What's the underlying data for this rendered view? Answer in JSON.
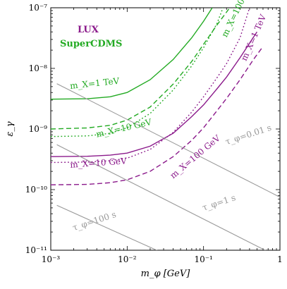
{
  "chart_data": {
    "type": "line",
    "xlabel": "m_φ [GeV]",
    "ylabel": "ε_γ",
    "xscale": "log",
    "yscale": "log",
    "xlim": [
      0.001,
      1
    ],
    "ylim": [
      1e-11,
      1e-07
    ],
    "x_tick_labels": [
      "10⁻³",
      "10⁻²",
      "10⁻¹",
      "1"
    ],
    "y_tick_labels": [
      "10⁻¹¹",
      "10⁻¹⁰",
      "10⁻⁹",
      "10⁻⁸",
      "10⁻⁷"
    ],
    "legend": [
      {
        "name": "LUX",
        "color": "#8b1a8b"
      },
      {
        "name": "SuperCDMS",
        "color": "#22aa22"
      }
    ],
    "series": [
      {
        "name": "SuperCDMS m_X=1 TeV",
        "experiment": "SuperCDMS",
        "color": "#22aa22",
        "dash": "solid",
        "x": [
          0.001,
          0.003,
          0.006,
          0.01,
          0.02,
          0.04,
          0.07,
          0.1,
          0.13
        ],
        "y": [
          3.1e-09,
          3.15e-09,
          3.4e-09,
          4e-09,
          6.5e-09,
          1.4e-08,
          3.2e-08,
          6e-08,
          1e-07
        ]
      },
      {
        "name": "SuperCDMS m_X=100 GeV",
        "experiment": "SuperCDMS",
        "color": "#22aa22",
        "dash": "dotted",
        "x": [
          0.001,
          0.003,
          0.006,
          0.01,
          0.02,
          0.04,
          0.07,
          0.1,
          0.15,
          0.18
        ],
        "y": [
          7.5e-10,
          7.7e-10,
          8.5e-10,
          1.05e-09,
          1.8e-09,
          4.4e-09,
          1.1e-08,
          2.2e-08,
          5.5e-08,
          1e-07
        ]
      },
      {
        "name": "SuperCDMS m_X=10 GeV",
        "experiment": "SuperCDMS",
        "color": "#22aa22",
        "dash": "dashed",
        "x": [
          0.001,
          0.003,
          0.006,
          0.01,
          0.02,
          0.04,
          0.07,
          0.1,
          0.15,
          0.2,
          0.22
        ],
        "y": [
          1e-09,
          1.04e-09,
          1.15e-09,
          1.4e-09,
          2.3e-09,
          5.5e-09,
          1.3e-08,
          2.5e-08,
          5.2e-08,
          8.5e-08,
          1e-07
        ]
      },
      {
        "name": "LUX m_X=1 TeV",
        "experiment": "LUX",
        "color": "#8b1a8b",
        "dash": "dotted",
        "x": [
          0.001,
          0.003,
          0.006,
          0.01,
          0.02,
          0.04,
          0.07,
          0.1,
          0.15,
          0.2,
          0.3,
          0.4
        ],
        "y": [
          2.8e-10,
          2.85e-10,
          3e-10,
          3.3e-10,
          4.6e-10,
          8.8e-10,
          1.9e-09,
          3.4e-09,
          7e-09,
          1.2e-08,
          3.2e-08,
          1e-07
        ]
      },
      {
        "name": "LUX m_X=10 GeV",
        "experiment": "LUX",
        "color": "#8b1a8b",
        "dash": "solid",
        "x": [
          0.001,
          0.003,
          0.006,
          0.01,
          0.02,
          0.04,
          0.07,
          0.1,
          0.15,
          0.2,
          0.3,
          0.4,
          0.5
        ],
        "y": [
          3.5e-10,
          3.55e-10,
          3.7e-10,
          4e-10,
          5.2e-10,
          8.5e-10,
          1.6e-09,
          2.5e-09,
          4.6e-09,
          7.2e-09,
          1.5e-08,
          2.6e-08,
          4e-08
        ]
      },
      {
        "name": "LUX m_X=100 GeV",
        "experiment": "LUX",
        "color": "#8b1a8b",
        "dash": "dashed",
        "x": [
          0.001,
          0.003,
          0.006,
          0.01,
          0.02,
          0.04,
          0.07,
          0.1,
          0.15,
          0.2,
          0.3,
          0.45,
          0.6
        ],
        "y": [
          1.2e-10,
          1.22e-10,
          1.3e-10,
          1.45e-10,
          2e-10,
          3.5e-10,
          6.5e-10,
          1.05e-09,
          2e-09,
          3.2e-09,
          6.5e-09,
          1.4e-08,
          2.3e-08
        ]
      },
      {
        "name": "τ_φ=0.01 s",
        "color": "#999999",
        "dash": "solid",
        "x": [
          0.0012,
          1
        ],
        "y": [
          5.6e-09,
          7.5e-11
        ]
      },
      {
        "name": "τ_φ=1 s",
        "color": "#999999",
        "dash": "solid",
        "x": [
          0.0012,
          1
        ],
        "y": [
          5.5e-10,
          7.5e-12
        ]
      },
      {
        "name": "τ_φ=100 s",
        "color": "#999999",
        "dash": "solid",
        "x": [
          0.0012,
          0.03
        ],
        "y": [
          5.5e-11,
          8.9e-12
        ]
      }
    ],
    "annotations": [
      {
        "text": "m_X=1 TeV",
        "color": "#22aa22",
        "x": 0.0018,
        "y": 4.6e-09,
        "rotate": -6
      },
      {
        "text": "m_X=100 GeV",
        "color": "#22aa22",
        "x": 0.2,
        "y": 3.2e-08,
        "rotate": -64
      },
      {
        "text": "m_X=10 GeV",
        "color": "#22aa22",
        "x": 0.004,
        "y": 7.3e-10,
        "rotate": -13
      },
      {
        "text": "m_X=1 TeV",
        "color": "#8b1a8b",
        "x": 0.36,
        "y": 1.3e-08,
        "rotate": -66
      },
      {
        "text": "m_X=10 GeV",
        "color": "#8b1a8b",
        "x": 0.0018,
        "y": 2.3e-10,
        "rotate": -4
      },
      {
        "text": "m_X=100 GeV",
        "color": "#8b1a8b",
        "x": 0.04,
        "y": 1.5e-10,
        "rotate": -40
      },
      {
        "text": "τ_φ=0.01 s",
        "color": "#999999",
        "x": 0.2,
        "y": 5.5e-10,
        "rotate": -18
      },
      {
        "text": "τ_φ=1 s",
        "color": "#999999",
        "x": 0.1,
        "y": 4.5e-11,
        "rotate": -18
      },
      {
        "text": "τ_φ=100 s",
        "color": "#999999",
        "x": 0.002,
        "y": 2.1e-11,
        "rotate": -18
      }
    ]
  }
}
